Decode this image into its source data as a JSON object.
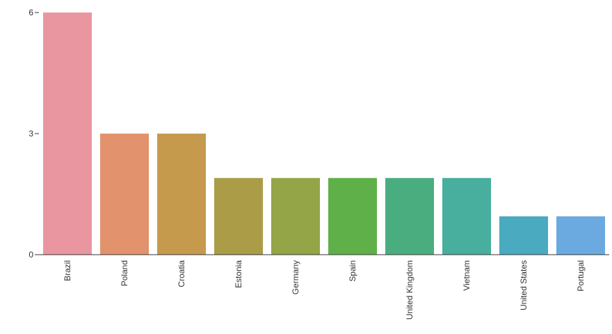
{
  "chart_data": {
    "type": "bar",
    "categories": [
      "Brazil",
      "Poland",
      "Croatia",
      "Estonia",
      "Germany",
      "Spain",
      "United Kingdom",
      "Vietnam",
      "United States",
      "Portugal"
    ],
    "values": [
      6,
      3,
      3,
      1.9,
      1.9,
      1.9,
      1.9,
      1.9,
      0.95,
      0.95
    ],
    "colors": [
      "#e996a0",
      "#e2926c",
      "#c59a4d",
      "#ab9d48",
      "#93a547",
      "#60b04a",
      "#4aad80",
      "#48ae9e",
      "#4aaabf",
      "#6aaae0"
    ],
    "yticks": [
      0,
      3,
      6
    ],
    "ylim": [
      0,
      6
    ],
    "title": "",
    "xlabel": "",
    "ylabel": "",
    "grid": false,
    "legend": "none"
  }
}
